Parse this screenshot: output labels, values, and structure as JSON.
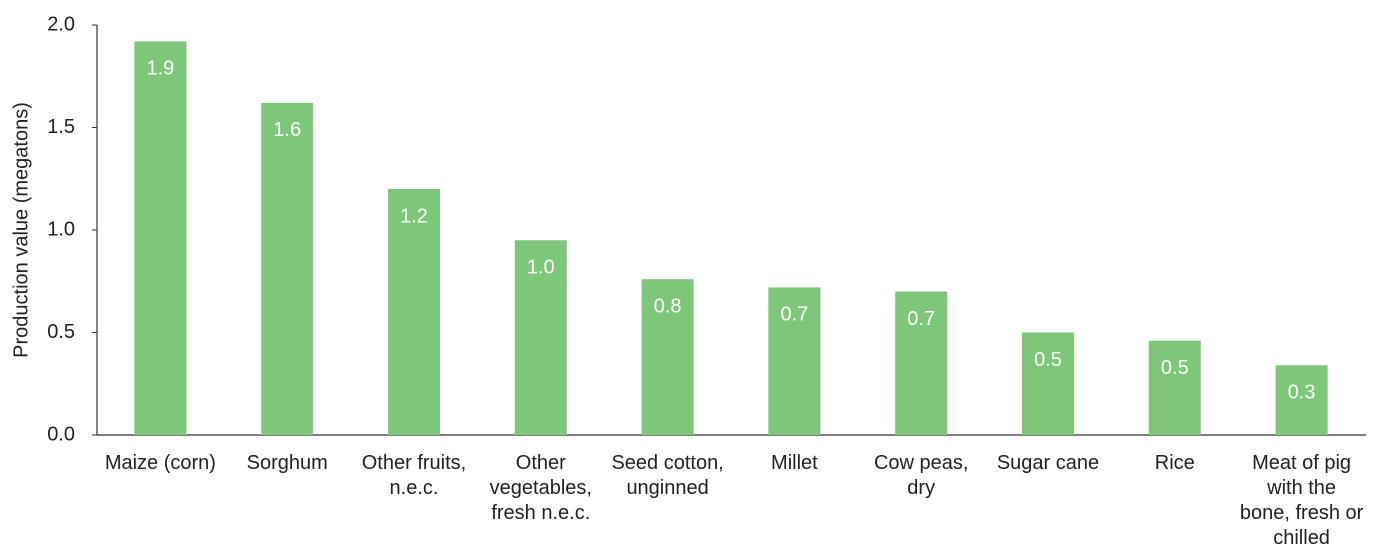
{
  "chart_data": {
    "type": "bar",
    "y_label": "Production value (megatons)",
    "categories": [
      "Maize (corn)",
      "Sorghum",
      "Other fruits, n.e.c.",
      "Other vegetables, fresh n.e.c.",
      "Seed cotton, unginned",
      "Millet",
      "Cow peas, dry",
      "Sugar cane",
      "Rice",
      "Meat of pig with the bone, fresh or chilled"
    ],
    "values": [
      1.92,
      1.62,
      1.2,
      0.95,
      0.76,
      0.72,
      0.7,
      0.5,
      0.46,
      0.34
    ],
    "value_labels": [
      "1.9",
      "1.6",
      "1.2",
      "1.0",
      "0.8",
      "0.7",
      "0.7",
      "0.5",
      "0.5",
      "0.3"
    ],
    "color": "#7dc67a",
    "ylim": [
      0,
      2
    ],
    "yticks": [
      {
        "value": 0,
        "label": "0.0"
      },
      {
        "value": 0.5,
        "label": "0.5"
      },
      {
        "value": 1,
        "label": "1.0"
      },
      {
        "value": 1.5,
        "label": "1.5"
      },
      {
        "value": 2,
        "label": "2.0"
      }
    ],
    "grid": false
  }
}
